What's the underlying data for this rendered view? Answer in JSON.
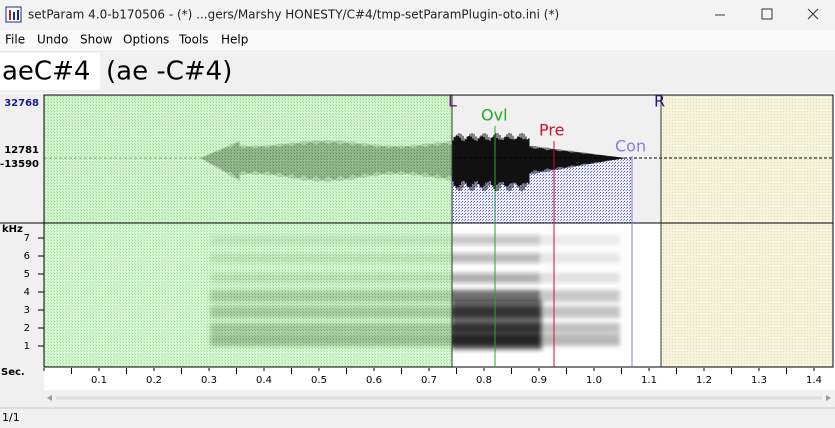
{
  "window": {
    "title": "setParam 4.0-b170506 - (*) ...gers/Marshy HONESTY/C#4/tmp-setParamPlugin-oto.ini (*)",
    "menu": [
      "File",
      "Undo",
      "Show",
      "Options",
      "Tools",
      "Help"
    ]
  },
  "alias": {
    "name": "aeC#4",
    "detail": "(ae -C#4)"
  },
  "waveform": {
    "labels": [
      "32768",
      "12781",
      "-13590"
    ]
  },
  "markers": {
    "left": "L",
    "overlap": "Ovl",
    "preutterance": "Pre",
    "consonant": "Con",
    "right": "R"
  },
  "spectrogram": {
    "unit": "kHz",
    "labels": [
      "7",
      "6",
      "5",
      "4",
      "3",
      "2",
      "1"
    ]
  },
  "time_axis": {
    "unit": "Sec.",
    "labels": [
      "0.1",
      "0.2",
      "0.3",
      "0.4",
      "0.5",
      "0.6",
      "0.7",
      "0.8",
      "0.9",
      "1.0",
      "1.1",
      "1.2",
      "1.3",
      "1.4"
    ]
  },
  "status": "1/1"
}
